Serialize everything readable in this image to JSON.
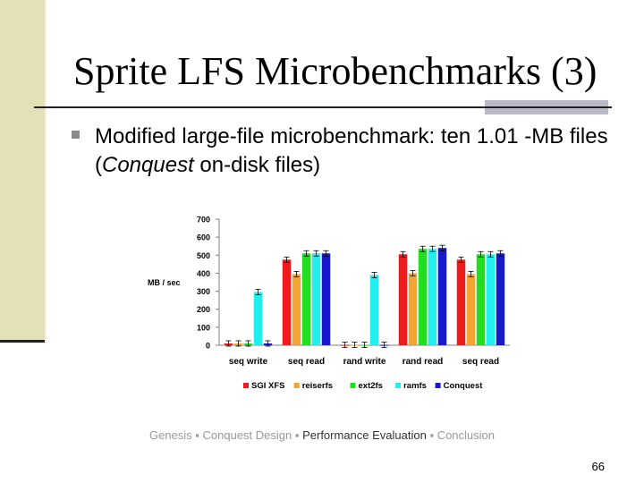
{
  "slide": {
    "title": "Sprite LFS Microbenchmarks (3)",
    "bullet_text_1": "Modified large-file microbenchmark:  ten  1.01 -MB files (",
    "bullet_text_em": "Conquest",
    "bullet_text_2": " on-disk files)",
    "footer": {
      "items": [
        "Genesis",
        "Conquest Design",
        "Performance Evaluation",
        "Conclusion"
      ],
      "separator": "▪",
      "current_index": 2
    },
    "page_number": "66"
  },
  "chart_data": {
    "type": "bar",
    "ylabel": "MB / sec",
    "xlabel": "",
    "ylim": [
      0,
      700
    ],
    "yticks": [
      0,
      100,
      200,
      300,
      400,
      500,
      600,
      700
    ],
    "categories": [
      "seq write",
      "seq read",
      "rand write",
      "rand read",
      "seq read"
    ],
    "series": [
      {
        "name": "SGI XFS",
        "color": "#ee1c1c",
        "values": [
          10,
          475,
          2,
          505,
          475
        ]
      },
      {
        "name": "reiserfs",
        "color": "#f3a533",
        "values": [
          10,
          395,
          2,
          400,
          395
        ]
      },
      {
        "name": "ext2fs",
        "color": "#22dd22",
        "values": [
          10,
          510,
          2,
          535,
          505
        ]
      },
      {
        "name": "ramfs",
        "color": "#22eeee",
        "values": [
          295,
          510,
          390,
          535,
          505
        ]
      },
      {
        "name": "Conquest",
        "color": "#1818cc",
        "values": [
          10,
          510,
          2,
          540,
          510
        ]
      }
    ],
    "error_bars": true,
    "grid": false,
    "legend_position": "bottom"
  }
}
